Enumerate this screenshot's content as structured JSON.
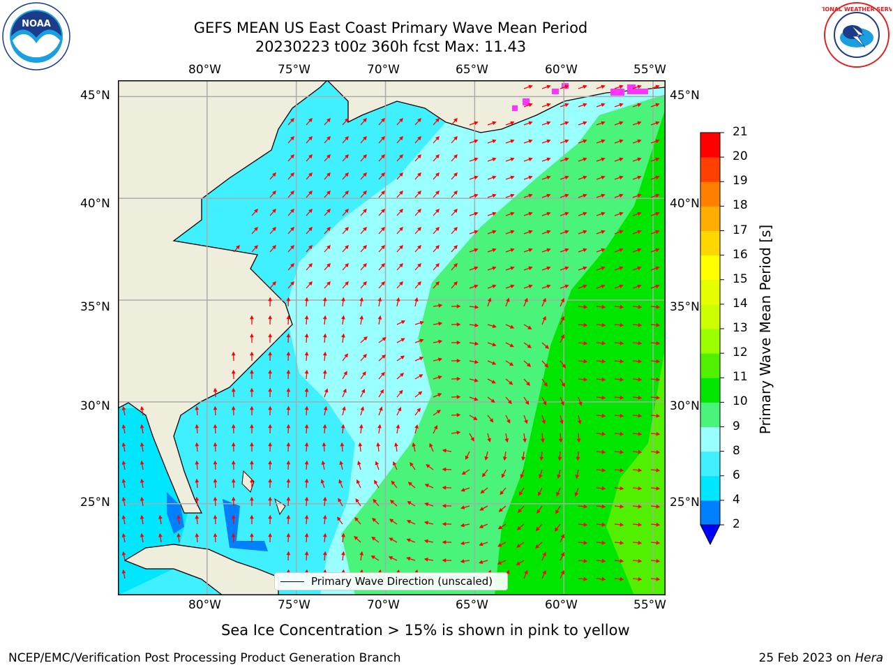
{
  "title": {
    "line1": "GEFS MEAN US East Coast Primary Wave Mean Period",
    "line2": "20230223 t00z 360h fcst   Max: 11.43"
  },
  "map": {
    "lon_ticks": [
      "80°W",
      "75°W",
      "70°W",
      "65°W",
      "60°W",
      "55°W"
    ],
    "lat_ticks": [
      "45°N",
      "40°N",
      "35°N",
      "30°N",
      "25°N"
    ],
    "extent": {
      "lon": [
        -85,
        -54.3
      ],
      "lat": [
        20.5,
        45.8
      ]
    },
    "land_color": "#efeedd",
    "grid": true,
    "vector_color": "#ff0000"
  },
  "legend": {
    "label": "Primary Wave Direction (unscaled)"
  },
  "colorbar": {
    "title": "Primary Wave Mean Period [s]",
    "ticks": [
      "2",
      "4",
      "6",
      "8",
      "9",
      "10",
      "11",
      "12",
      "13",
      "14",
      "15",
      "16",
      "17",
      "18",
      "19",
      "20",
      "21"
    ],
    "colors": [
      "#0080ff",
      "#00e6ff",
      "#40f0ff",
      "#99ffff",
      "#4af37a",
      "#00e600",
      "#50f000",
      "#9cff00",
      "#ccff00",
      "#e6ff00",
      "#ffff00",
      "#ffd700",
      "#ffad00",
      "#ff8000",
      "#ff4000",
      "#ff0000"
    ],
    "under_color": "#0000ff"
  },
  "caption": "Sea Ice Concentration > 15% is shown in pink to yellow",
  "footer": {
    "left": "NCEP/EMC/Verification Post Processing Product Generation Branch",
    "right_prefix": "25 Feb 2023 on ",
    "right_host": "Hera"
  },
  "logos": {
    "noaa": {
      "text": "NOAA",
      "icon": "noaa-logo"
    },
    "nws": {
      "text": "NATIONAL WEATHER SERVICE",
      "icon": "nws-logo"
    }
  }
}
